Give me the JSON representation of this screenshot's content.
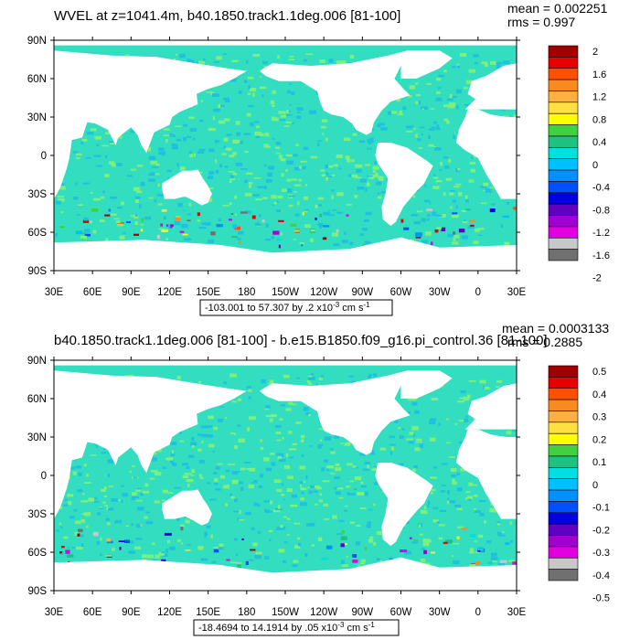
{
  "panels": [
    {
      "title": "WVEL at z=1041.4m, b40.1850.track1.1deg.006 [81-100]",
      "mean": "mean = 0.002251",
      "rms": "rms = 0.997",
      "y_labels": [
        "90N",
        "60N",
        "30N",
        "0",
        "30S",
        "60S",
        "90S"
      ],
      "x_labels": [
        "30E",
        "60E",
        "90E",
        "120E",
        "150E",
        "180",
        "150W",
        "120W",
        "90W",
        "60W",
        "30W",
        "0",
        "30E"
      ],
      "colorbar_labels": [
        "2",
        "1.6",
        "1.2",
        "0.8",
        "0.4",
        "0",
        "-0.4",
        "-0.8",
        "-1.2",
        "-1.6",
        "-2"
      ],
      "info_prefix": "-103.001 to 57.307 by .2 x10",
      "info_exp": "-3",
      "info_units": " cm s",
      "info_units_exp": "-1"
    },
    {
      "title": "b40.1850.track1.1deg.006 [81-100] - b.e15.B1850.f09_g16.pi_control.36 [81-100]",
      "mean": "mean = 0.0003133",
      "rms": "rms = 0.2885",
      "y_labels": [
        "90N",
        "60N",
        "30N",
        "0",
        "30S",
        "60S",
        "90S"
      ],
      "x_labels": [
        "30E",
        "60E",
        "90E",
        "120E",
        "150E",
        "180",
        "150W",
        "120W",
        "90W",
        "60W",
        "30W",
        "0",
        "30E"
      ],
      "colorbar_labels": [
        "0.5",
        "0.4",
        "0.3",
        "0.2",
        "0.1",
        "0",
        "-0.1",
        "-0.2",
        "-0.3",
        "-0.4",
        "-0.5"
      ],
      "info_prefix": "-18.4694 to 14.1914 by .05 x10",
      "info_exp": "-3",
      "info_units": " cm s",
      "info_units_exp": "-1"
    }
  ],
  "colors": {
    "ocean_fill": "#33ddc0",
    "ocean_light": "#7cf07a",
    "land": "#ffffff",
    "colorbar": [
      "#a00000",
      "#e60000",
      "#ff5000",
      "#f78a20",
      "#ffb040",
      "#ffe040",
      "#ffff00",
      "#40d040",
      "#20c080",
      "#00e0e0",
      "#00c0ff",
      "#0090ff",
      "#0050ff",
      "#0000e0",
      "#6000c0",
      "#a000d0",
      "#e000e0",
      "#c8c8c8",
      "#707070"
    ]
  }
}
